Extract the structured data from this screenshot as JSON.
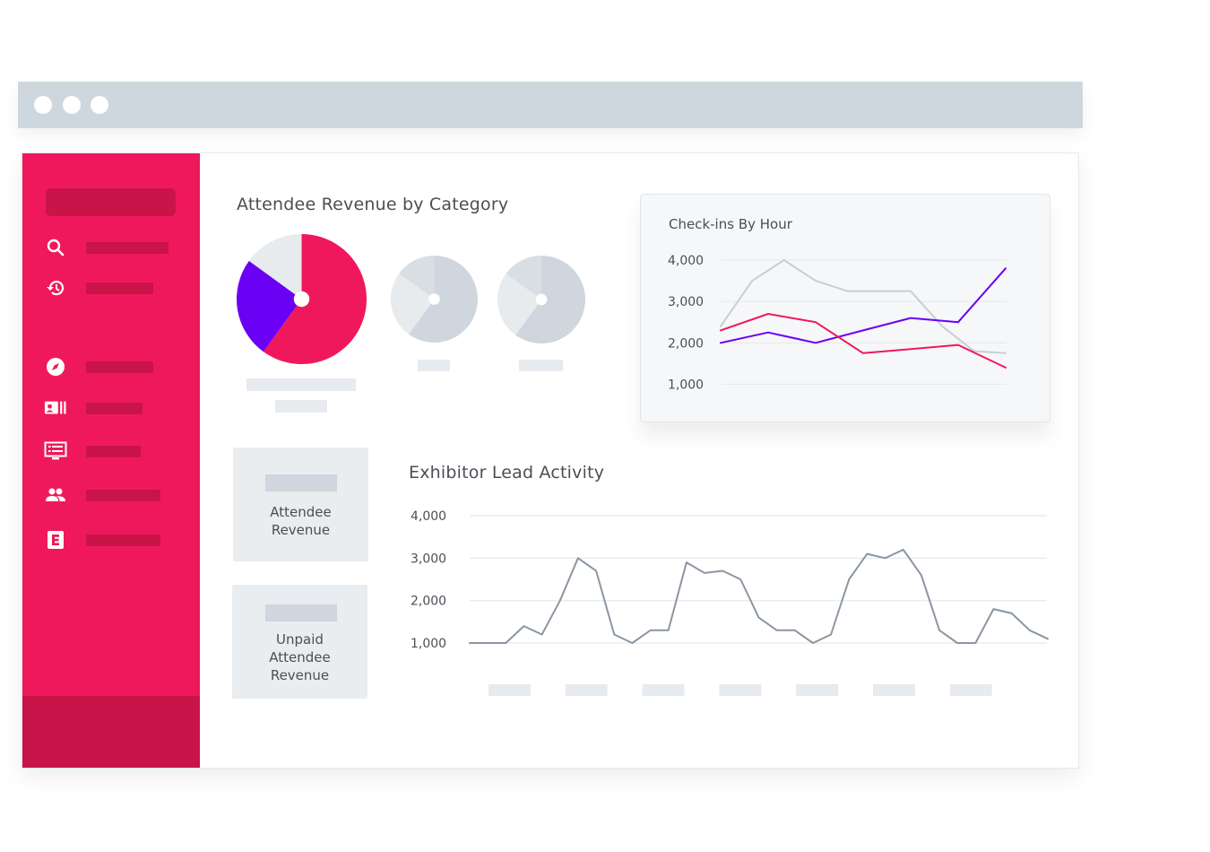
{
  "window": {
    "traffic_lights": [
      "dot",
      "dot",
      "dot"
    ]
  },
  "sidebar": {
    "items": [
      {
        "icon": "search-icon"
      },
      {
        "icon": "history-icon"
      },
      {
        "icon": "compass-icon"
      },
      {
        "icon": "badge-icon"
      },
      {
        "icon": "list-screen-icon"
      },
      {
        "icon": "people-icon"
      },
      {
        "icon": "e-logo-icon"
      }
    ]
  },
  "revenue_section": {
    "title": "Attendee Revenue by Category"
  },
  "cards": {
    "attendee_revenue": "Attendee Revenue",
    "unpaid_line1": "Unpaid",
    "unpaid_line2": "Attendee",
    "unpaid_line3": "Revenue",
    "attendee_line1": "Attendee",
    "attendee_line2": "Revenue"
  },
  "colors": {
    "accent": "#f0185c",
    "accent_dark": "#c81449",
    "purple": "#6a00f4",
    "gray_series": "#c8ced4",
    "lead_line": "#8b96a1"
  },
  "chart_data": [
    {
      "type": "pie",
      "name": "attendee-revenue-pie",
      "values": [
        60,
        25,
        15
      ],
      "colors": [
        "#f0185c",
        "#6a00f4",
        "#e8ebee"
      ]
    },
    {
      "type": "pie",
      "name": "placeholder-pie-2",
      "values": [
        60,
        25,
        15
      ],
      "colors": [
        "#cfd6dd",
        "#e8ebee",
        "#d9dee3"
      ]
    },
    {
      "type": "pie",
      "name": "placeholder-pie-3",
      "values": [
        60,
        25,
        15
      ],
      "colors": [
        "#cfd6dd",
        "#e8ebee",
        "#d9dee3"
      ]
    },
    {
      "type": "line",
      "title": "Check-ins By Hour",
      "yticks": [
        "4,000",
        "3,000",
        "2,000",
        "1,000"
      ],
      "ytick_values": [
        4000,
        3000,
        2000,
        1000
      ],
      "ylim": [
        900,
        4000
      ],
      "grid": true,
      "series": [
        {
          "color": "#c8ced4",
          "values": [
            2400,
            3500,
            4000,
            3500,
            3250,
            3250,
            3250,
            2400,
            1800,
            1750
          ]
        },
        {
          "color": "#6a00f4",
          "values": [
            2000,
            2250,
            2000,
            2300,
            2600,
            2500,
            3800
          ]
        },
        {
          "color": "#f0185c",
          "values": [
            2300,
            2700,
            2500,
            1750,
            1850,
            1950,
            1400
          ]
        }
      ]
    },
    {
      "type": "line",
      "title": "Exhibitor Lead Activity",
      "yticks": [
        "4,000",
        "3,000",
        "2,000",
        "1,000"
      ],
      "ytick_values": [
        4000,
        3000,
        2000,
        1000
      ],
      "ylim": [
        1000,
        4000
      ],
      "grid": true,
      "series": [
        {
          "color": "#8b96a1",
          "values": [
            1000,
            1000,
            1000,
            1400,
            1200,
            2000,
            3000,
            2700,
            1200,
            1000,
            1300,
            1300,
            2900,
            2650,
            2700,
            2500,
            1600,
            1300,
            1300,
            1000,
            1200,
            2500,
            3100,
            3000,
            3200,
            2600,
            1300,
            1000,
            1000,
            1800,
            1700,
            1300,
            1100
          ]
        }
      ]
    }
  ]
}
